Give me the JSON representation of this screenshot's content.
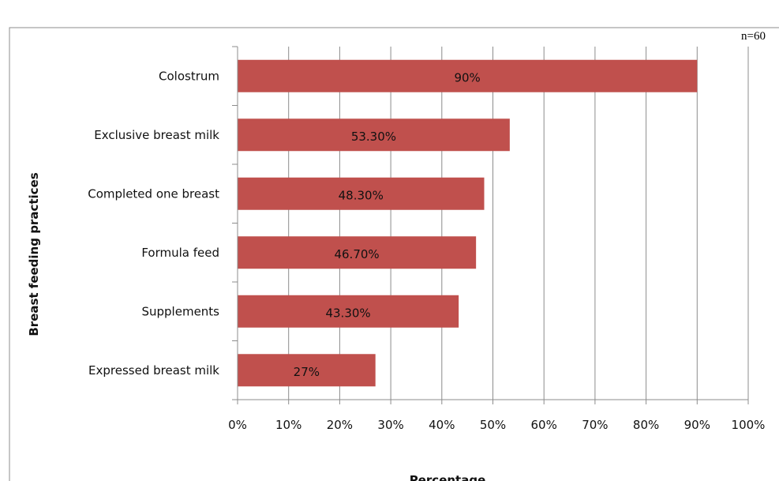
{
  "chart_data": {
    "type": "bar",
    "orientation": "horizontal",
    "note": "n=60",
    "title": "",
    "xlabel": "Percentage",
    "ylabel": "Breast feeding practices",
    "categories": [
      "Colostrum",
      "Exclusive breast milk",
      "Completed one breast",
      "Formula feed",
      "Supplements",
      "Expressed breast milk"
    ],
    "values": [
      90,
      53.3,
      48.3,
      46.7,
      43.3,
      27
    ],
    "data_labels": [
      "90%",
      "53.30%",
      "48.30%",
      "46.70%",
      "43.30%",
      "27%"
    ],
    "x_ticks": [
      "0%",
      "10%",
      "20%",
      "30%",
      "40%",
      "50%",
      "60%",
      "70%",
      "80%",
      "90%",
      "100%"
    ],
    "xlim": [
      0,
      100
    ],
    "grid": "vertical",
    "legend": "none",
    "bar_color": "#c0504d",
    "gridline_color": "#8c8c8c"
  }
}
